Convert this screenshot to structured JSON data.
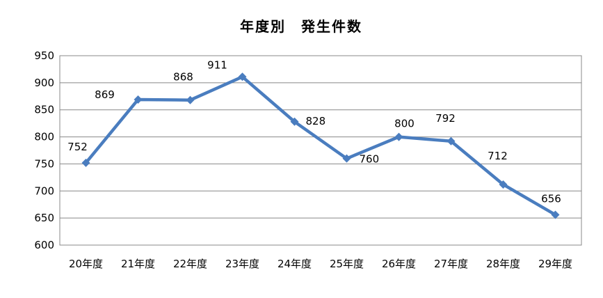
{
  "chart_data": {
    "type": "line",
    "title": "年度別　発生件数",
    "categories": [
      "20年度",
      "21年度",
      "22年度",
      "23年度",
      "24年度",
      "25年度",
      "26年度",
      "27年度",
      "28年度",
      "29年度"
    ],
    "series": [
      {
        "values": [
          752,
          869,
          868,
          911,
          828,
          760,
          800,
          792,
          712,
          656
        ]
      }
    ],
    "ylim": [
      600,
      950
    ],
    "yticks": [
      600,
      650,
      700,
      750,
      800,
      850,
      900,
      950
    ],
    "grid": true,
    "legend": "none",
    "line_color": "#4a7dbf"
  }
}
